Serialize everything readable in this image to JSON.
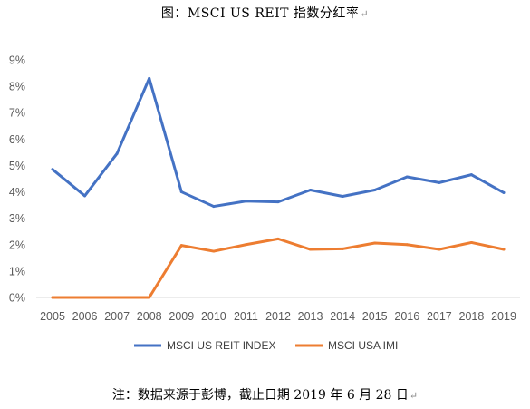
{
  "caption": {
    "title": "图：MSCI US REIT 指数分红率",
    "note": "注：数据来源于彭博，截止日期 2019 年 6 月 28 日",
    "paragraph_mark": "↵"
  },
  "chart_data": {
    "type": "line",
    "title": "",
    "xlabel": "",
    "ylabel": "",
    "categories": [
      "2005",
      "2006",
      "2007",
      "2008",
      "2009",
      "2010",
      "2011",
      "2012",
      "2013",
      "2014",
      "2015",
      "2016",
      "2017",
      "2018",
      "2019"
    ],
    "ylim": [
      0,
      9
    ],
    "yticks": [
      "0%",
      "1%",
      "2%",
      "3%",
      "4%",
      "5%",
      "6%",
      "7%",
      "8%",
      "9%"
    ],
    "grid": false,
    "legend_position": "bottom",
    "series": [
      {
        "name": "MSCI US REIT INDEX",
        "color": "#4472C4",
        "values": [
          4.85,
          3.85,
          5.45,
          8.3,
          4.0,
          3.45,
          3.65,
          3.62,
          4.07,
          3.83,
          4.07,
          4.57,
          4.35,
          4.65,
          3.97
        ]
      },
      {
        "name": "MSCI USA IMI",
        "color": "#ED7D31",
        "values": [
          0,
          0,
          0,
          0,
          1.97,
          1.75,
          2.0,
          2.22,
          1.82,
          1.84,
          2.06,
          2.0,
          1.82,
          2.08,
          1.82
        ]
      }
    ]
  }
}
